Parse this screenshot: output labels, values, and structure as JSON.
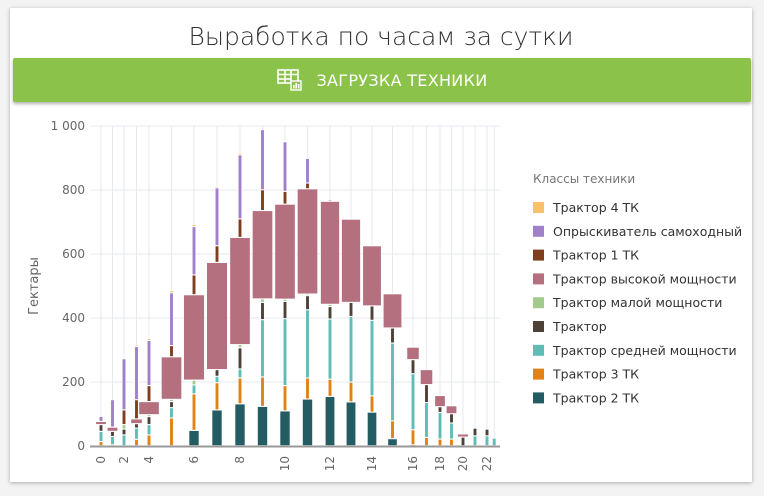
{
  "header": {
    "title": "Выработка по часам за сутки"
  },
  "button": {
    "label": "ЗАГРУЗКА ТЕХНИКИ",
    "icon": "table-chart-icon",
    "color": "#8bc34a"
  },
  "chart_data": {
    "type": "bar",
    "stacked": true,
    "title": "Выработка по часам за сутки",
    "xlabel": "",
    "ylabel": "Гектары",
    "ylim": [
      0,
      1000
    ],
    "yticks": [
      "0",
      "200",
      "400",
      "600",
      "800",
      "1 000"
    ],
    "ytick_values": [
      0,
      200,
      400,
      600,
      800,
      1000
    ],
    "xticks": [
      "0",
      "2",
      "4",
      "6",
      "8",
      "10",
      "12",
      "14",
      "16",
      "18",
      "20",
      "22"
    ],
    "xtick_values": [
      0,
      2,
      4,
      6,
      8,
      10,
      12,
      14,
      16,
      18,
      20,
      22
    ],
    "x": [
      0,
      1,
      2,
      3,
      4,
      5,
      6,
      7,
      8,
      9,
      10,
      11,
      12,
      13,
      14,
      15,
      16,
      17,
      18,
      19,
      20,
      21,
      22,
      23
    ],
    "legend_title": "Классы техники",
    "legend_position": "right",
    "grid": true,
    "series": [
      {
        "name": "Трактор 2 ТК",
        "color": "#245c63",
        "values": [
          0,
          0,
          0,
          0,
          0,
          0,
          48,
          112,
          131,
          123,
          109,
          146,
          154,
          137,
          105,
          22,
          3,
          0,
          0,
          0,
          0,
          0,
          0,
          0
        ]
      },
      {
        "name": "Трактор 3 ТК",
        "color": "#e08214",
        "values": [
          13,
          3,
          0,
          20,
          34,
          87,
          114,
          85,
          81,
          92,
          79,
          66,
          54,
          62,
          51,
          56,
          47,
          26,
          21,
          21,
          0,
          0,
          0,
          0
        ]
      },
      {
        "name": "Трактор средней мощности",
        "color": "#5fbcb6",
        "values": [
          32,
          26,
          34,
          35,
          32,
          32,
          28,
          20,
          28,
          179,
          209,
          213,
          188,
          205,
          236,
          243,
          175,
          109,
          83,
          50,
          0,
          31,
          31,
          24
        ]
      },
      {
        "name": "Трактор",
        "color": "#4e4238",
        "values": [
          21,
          16,
          18,
          14,
          25,
          19,
          0,
          21,
          66,
          54,
          54,
          44,
          39,
          44,
          45,
          47,
          44,
          56,
          18,
          29,
          27,
          24,
          21,
          0
        ]
      },
      {
        "name": "Трактор малой мощности",
        "color": "#a3cb8b",
        "values": [
          0,
          0,
          14,
          0,
          6,
          7,
          15,
          0,
          10,
          11,
          7,
          5,
          7,
          0,
          0,
          0,
          0,
          0,
          0,
          0,
          0,
          0,
          0,
          0
        ]
      },
      {
        "name": "Трактор высокой мощности",
        "color": "#b5707f",
        "values": [
          10,
          13,
          0,
          15,
          41,
          133,
          267,
          335,
          335,
          276,
          297,
          329,
          322,
          260,
          188,
          107,
          39,
          47,
          35,
          25,
          10,
          0,
          0,
          0
        ]
      },
      {
        "name": "Трактор 1 ТК",
        "color": "#7f3f1e",
        "values": [
          0,
          0,
          46,
          60,
          50,
          35,
          62,
          52,
          58,
          65,
          40,
          18,
          0,
          0,
          0,
          0,
          0,
          0,
          0,
          0,
          0,
          0,
          0,
          0
        ]
      },
      {
        "name": "Опрыскиватель самоходный",
        "color": "#a07fcb",
        "values": [
          16,
          86,
          160,
          166,
          141,
          165,
          151,
          181,
          200,
          188,
          155,
          77,
          5,
          0,
          0,
          0,
          0,
          0,
          0,
          0,
          0,
          0,
          0,
          0
        ]
      },
      {
        "name": "Трактор 4 ТК",
        "color": "#f9c26a",
        "values": [
          0,
          0,
          0,
          5,
          6,
          7,
          7,
          4,
          6,
          0,
          0,
          0,
          0,
          0,
          0,
          0,
          0,
          0,
          0,
          0,
          0,
          0,
          0,
          0
        ]
      }
    ]
  }
}
